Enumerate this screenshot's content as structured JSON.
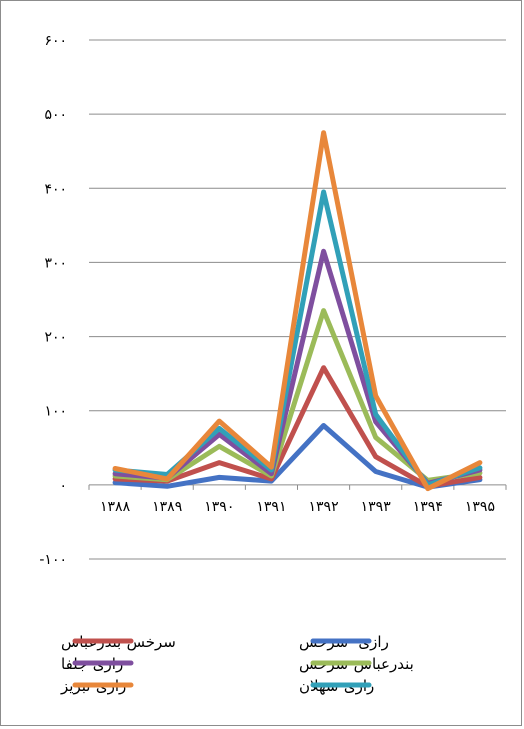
{
  "chart_data": {
    "type": "line",
    "categories": [
      "۱۳۸۸",
      "۱۳۸۹",
      "۱۳۹۰",
      "۱۳۹۱",
      "۱۳۹۲",
      "۱۳۹۳",
      "۱۳۹۴",
      "۱۳۹۵"
    ],
    "ylim": [
      -100,
      600
    ],
    "yticks": [
      600,
      500,
      400,
      300,
      200,
      100,
      0,
      -100
    ],
    "ytick_labels": [
      "۶۰۰",
      "۵۰۰",
      "۴۰۰",
      "۳۰۰",
      "۲۰۰",
      "۱۰۰",
      "۰",
      "-۱۰۰"
    ],
    "grid": true,
    "legend_position": "bottom",
    "series": [
      {
        "name": "رازی- سرخس",
        "color": "#4472c4",
        "values": [
          3,
          -2,
          10,
          5,
          80,
          18,
          -3,
          7
        ]
      },
      {
        "name": "سرخس-بندرعباس",
        "color": "#c0504d",
        "values": [
          8,
          5,
          30,
          8,
          158,
          38,
          -2,
          10
        ]
      },
      {
        "name": "بندرعباس-سرخس",
        "color": "#9bbb59",
        "values": [
          12,
          7,
          52,
          12,
          235,
          64,
          6,
          16
        ]
      },
      {
        "name": "رازی-جلفا",
        "color": "#7f4f9f",
        "values": [
          15,
          9,
          68,
          15,
          315,
          85,
          2,
          20
        ]
      },
      {
        "name": "رازی-سهلان",
        "color": "#31a0b8",
        "values": [
          20,
          14,
          76,
          20,
          395,
          95,
          0,
          23
        ]
      },
      {
        "name": "رازی-تبریز",
        "color": "#e8873a",
        "values": [
          22,
          8,
          86,
          24,
          475,
          120,
          -5,
          30
        ]
      }
    ]
  }
}
